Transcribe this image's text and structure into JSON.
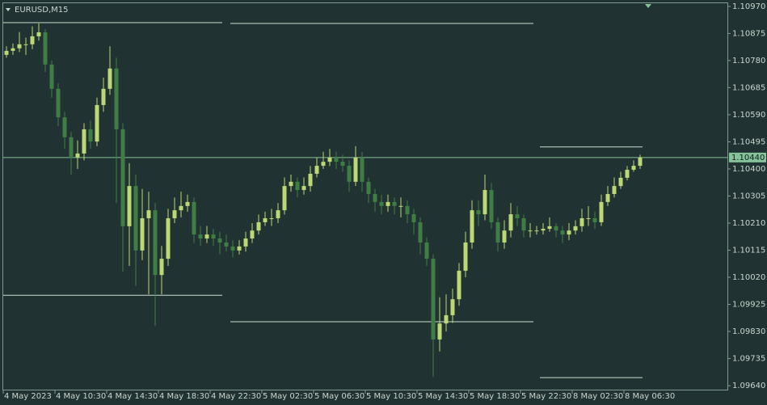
{
  "chart_data": {
    "type": "candlestick",
    "title": "EURUSD,M15",
    "categories": [
      "4 May 2023",
      null,
      null,
      null,
      null,
      null,
      null,
      null,
      "4 May 10:30",
      null,
      null,
      null,
      null,
      null,
      null,
      null,
      "4 May 14:30",
      null,
      null,
      null,
      null,
      null,
      null,
      null,
      "4 May 18:30",
      null,
      null,
      null,
      null,
      null,
      null,
      null,
      "4 May 22:30",
      null,
      null,
      null,
      null,
      null,
      null,
      null,
      "5 May 02:30",
      null,
      null,
      null,
      null,
      null,
      null,
      null,
      "5 May 06:30",
      null,
      null,
      null,
      null,
      null,
      null,
      null,
      "5 May 10:30",
      null,
      null,
      null,
      null,
      null,
      null,
      null,
      "5 May 14:30",
      null,
      null,
      null,
      null,
      null,
      null,
      null,
      "5 May 18:30",
      null,
      null,
      null,
      null,
      null,
      null,
      null,
      "5 May 22:30",
      null,
      null,
      null,
      null,
      null,
      null,
      null,
      "8 May 02:30",
      null,
      null,
      null,
      null,
      null,
      null,
      null,
      "8 May 06:30",
      null,
      null
    ],
    "open": [
      1.108,
      1.10814,
      1.10823,
      1.10837,
      1.10837,
      1.10865,
      1.10879,
      1.10766,
      1.10681,
      1.10581,
      1.10511,
      1.1044,
      1.10454,
      1.10539,
      1.10496,
      1.10624,
      1.10681,
      1.10752,
      1.10539,
      1.10199,
      1.1034,
      1.10114,
      1.10227,
      1.10255,
      1.10028,
      1.10085,
      1.10227,
      1.10255,
      1.1027,
      1.10284,
      1.1017,
      1.10156,
      1.1017,
      1.10156,
      1.10142,
      1.10128,
      1.10114,
      1.10128,
      1.10156,
      1.10184,
      1.10213,
      1.10227,
      1.10227,
      1.10255,
      1.1034,
      1.10355,
      1.10326,
      1.1034,
      1.10383,
      1.10411,
      1.10425,
      1.1044,
      1.10425,
      1.10411,
      1.10355,
      1.1044,
      1.10355,
      1.10312,
      1.10284,
      1.1027,
      1.10284,
      1.1027,
      1.1027,
      1.10241,
      1.10213,
      1.10142,
      1.10085,
      1.09802,
      1.09858,
      1.09887,
      1.09943,
      1.10043,
      1.10142,
      1.10255,
      1.10241,
      1.10326,
      1.10213,
      1.10142,
      1.10184,
      1.10241,
      1.10227,
      1.10184,
      1.10184,
      1.10184,
      1.1019,
      1.10199,
      1.10184,
      1.1017,
      1.10184,
      1.10199,
      1.10227,
      1.10227,
      1.10213,
      1.10284,
      1.10312,
      1.1034,
      1.10369,
      1.10397,
      1.10411
    ],
    "high": [
      1.1083,
      1.1084,
      1.1088,
      1.1086,
      1.109,
      1.1091,
      1.1089,
      1.1078,
      1.107,
      1.106,
      1.1053,
      1.105,
      1.1056,
      1.1057,
      1.1065,
      1.1072,
      1.1083,
      1.1079,
      1.1056,
      1.1042,
      1.1038,
      1.1033,
      1.1032,
      1.1028,
      1.1013,
      1.1026,
      1.103,
      1.1032,
      1.1031,
      1.103,
      1.102,
      1.102,
      1.1019,
      1.1018,
      1.1017,
      1.1015,
      1.1015,
      1.1018,
      1.1021,
      1.1024,
      1.1025,
      1.1026,
      1.1028,
      1.1037,
      1.1038,
      1.1037,
      1.1037,
      1.1041,
      1.1044,
      1.1046,
      1.1047,
      1.1046,
      1.1045,
      1.1043,
      1.1048,
      1.1046,
      1.1037,
      1.1033,
      1.1031,
      1.1031,
      1.103,
      1.103,
      1.1029,
      1.1026,
      1.1023,
      1.1016,
      1.101,
      1.0995,
      1.0996,
      1.0998,
      1.1007,
      1.1018,
      1.1029,
      1.1029,
      1.1038,
      1.1035,
      1.1023,
      1.1022,
      1.1028,
      1.1027,
      1.1024,
      1.1021,
      1.102,
      1.1021,
      1.1023,
      1.1021,
      1.102,
      1.1021,
      1.1022,
      1.1026,
      1.1027,
      1.1025,
      1.1031,
      1.1034,
      1.1037,
      1.1039,
      1.1041,
      1.1043,
      1.1045
    ],
    "low": [
      1.1079,
      1.108,
      1.1081,
      1.108,
      1.1082,
      1.1085,
      1.1074,
      1.1065,
      1.1055,
      1.1047,
      1.1038,
      1.104,
      1.1043,
      1.1047,
      1.1048,
      1.106,
      1.1066,
      1.1028,
      1.1004,
      1.1006,
      1.0999,
      1.1008,
      1.0996,
      1.0985,
      1.0996,
      1.1006,
      1.1021,
      1.1023,
      1.1025,
      1.1014,
      1.1013,
      1.1014,
      1.1013,
      1.101,
      1.1011,
      1.1009,
      1.101,
      1.1011,
      1.1014,
      1.1017,
      1.102,
      1.102,
      1.1021,
      1.1024,
      1.1032,
      1.103,
      1.1031,
      1.1032,
      1.1037,
      1.104,
      1.1041,
      1.104,
      1.1039,
      1.1032,
      1.1034,
      1.1032,
      1.1028,
      1.1025,
      1.1024,
      1.1025,
      1.1024,
      1.1023,
      1.1021,
      1.1017,
      1.101,
      1.1006,
      1.0967,
      1.0976,
      1.0983,
      1.0986,
      1.0992,
      1.1002,
      1.1012,
      1.102,
      1.1022,
      1.1019,
      1.1011,
      1.1012,
      1.1016,
      1.102,
      1.1016,
      1.1016,
      1.1017,
      1.1017,
      1.1018,
      1.1016,
      1.1014,
      1.1015,
      1.1017,
      1.1018,
      1.102,
      1.1019,
      1.102,
      1.1027,
      1.103,
      1.1033,
      1.1036,
      1.1039,
      1.104
    ],
    "close": [
      1.10814,
      1.10823,
      1.10837,
      1.10837,
      1.10865,
      1.10879,
      1.10766,
      1.10681,
      1.10581,
      1.10511,
      1.1044,
      1.10454,
      1.10539,
      1.10496,
      1.10624,
      1.10681,
      1.10752,
      1.10539,
      1.10199,
      1.1034,
      1.10114,
      1.10227,
      1.10255,
      1.10028,
      1.10085,
      1.10227,
      1.10255,
      1.1027,
      1.10284,
      1.1017,
      1.10156,
      1.1017,
      1.10156,
      1.10142,
      1.10128,
      1.10114,
      1.10128,
      1.10156,
      1.10184,
      1.10213,
      1.10227,
      1.10227,
      1.10255,
      1.1034,
      1.10355,
      1.10326,
      1.1034,
      1.10383,
      1.10411,
      1.10425,
      1.1044,
      1.10425,
      1.10411,
      1.10355,
      1.1044,
      1.10355,
      1.10312,
      1.10284,
      1.1027,
      1.10284,
      1.1027,
      1.1027,
      1.10241,
      1.10213,
      1.10142,
      1.10085,
      1.09802,
      1.09858,
      1.09887,
      1.09943,
      1.10043,
      1.10142,
      1.10255,
      1.10241,
      1.10326,
      1.10213,
      1.10142,
      1.10184,
      1.10241,
      1.10227,
      1.10184,
      1.10184,
      1.10184,
      1.1019,
      1.10199,
      1.10184,
      1.1017,
      1.10184,
      1.10199,
      1.10227,
      1.10227,
      1.10213,
      1.10284,
      1.10312,
      1.1034,
      1.10369,
      1.10397,
      1.10411,
      1.1044
    ],
    "up_color": "#bcd874",
    "down_color": "#3f7d45",
    "levels": [
      1.10913,
      1.09957,
      1.1091,
      1.09864,
      1.10477,
      1.09668
    ],
    "level_color": "#c9ddd0",
    "last_price": {
      "value": 1.1044,
      "label": "1.10440"
    },
    "last_price_color": "#86c39a",
    "ylim": [
      1.09626,
      1.10981
    ],
    "yticks": [
      {
        "value": 1.1097,
        "label": "1.10970"
      },
      1.10875,
      {
        "value": 1.1078,
        "label": "1.10780"
      },
      1.10685,
      {
        "value": 1.1059,
        "label": "1.10590"
      },
      1.10495,
      {
        "value": 1.104,
        "label": "1.10400"
      },
      1.10305,
      {
        "value": 1.1021,
        "label": "1.10210"
      },
      1.10115,
      {
        "value": 1.1002,
        "label": "1.10020"
      },
      1.09925,
      {
        "value": 1.0983,
        "label": "1.09830"
      },
      1.09735,
      {
        "value": 1.0964,
        "label": "1.09640"
      }
    ],
    "grid": false
  }
}
